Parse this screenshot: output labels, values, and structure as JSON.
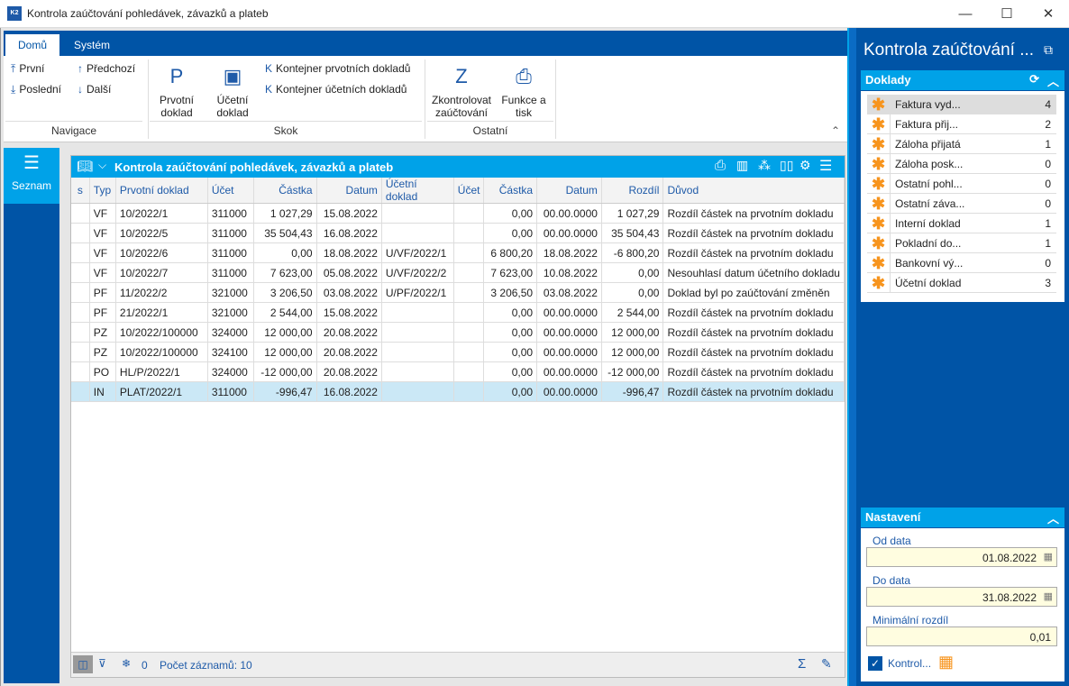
{
  "window": {
    "title": "Kontrola zaúčtování pohledávek, závazků a plateb",
    "logo": "K2",
    "minimize": "—",
    "maximize": "☐",
    "close": "✕"
  },
  "ribbon": {
    "tabs": [
      "Domů",
      "Systém"
    ],
    "nav": {
      "first": "První",
      "last": "Poslední",
      "prev": "Předchozí",
      "next": "Další",
      "group": "Navigace"
    },
    "skok": {
      "prvotni": "Prvotní doklad",
      "ucetni": "Účetní doklad",
      "kont_prv": "Kontejner prvotních dokladů",
      "kont_uc": "Kontejner účetních dokladů",
      "group": "Skok"
    },
    "ostatni": {
      "zkontrolovat": "Zkontrolovat zaúčtování",
      "funkce": "Funkce a tisk",
      "group": "Ostatní"
    }
  },
  "leftnav": {
    "seznam": "Seznam"
  },
  "grid": {
    "title": "Kontrola zaúčtování pohledávek, závazků a plateb",
    "columns": [
      "s",
      "Typ",
      "Prvotní doklad",
      "Účet",
      "Částka",
      "Datum",
      "Účetní doklad",
      "Účet",
      "Částka",
      "Datum",
      "Rozdíl",
      "Důvod"
    ],
    "rows": [
      [
        "",
        "VF",
        "10/2022/1",
        "311000",
        "1 027,29",
        "15.08.2022",
        "",
        "",
        "0,00",
        "00.00.0000",
        "1 027,29",
        "Rozdíl částek na prvotním dokladu"
      ],
      [
        "",
        "VF",
        "10/2022/5",
        "311000",
        "35 504,43",
        "16.08.2022",
        "",
        "",
        "0,00",
        "00.00.0000",
        "35 504,43",
        "Rozdíl částek na prvotním dokladu"
      ],
      [
        "",
        "VF",
        "10/2022/6",
        "311000",
        "0,00",
        "18.08.2022",
        "U/VF/2022/1",
        "",
        "6 800,20",
        "18.08.2022",
        "-6 800,20",
        "Rozdíl částek na prvotním dokladu"
      ],
      [
        "",
        "VF",
        "10/2022/7",
        "311000",
        "7 623,00",
        "05.08.2022",
        "U/VF/2022/2",
        "",
        "7 623,00",
        "10.08.2022",
        "0,00",
        "Nesouhlasí datum účetního dokladu"
      ],
      [
        "",
        "PF",
        "11/2022/2",
        "321000",
        "3 206,50",
        "03.08.2022",
        "U/PF/2022/1",
        "",
        "3 206,50",
        "03.08.2022",
        "0,00",
        "Doklad byl po zaúčtování změněn"
      ],
      [
        "",
        "PF",
        "21/2022/1",
        "321000",
        "2 544,00",
        "15.08.2022",
        "",
        "",
        "0,00",
        "00.00.0000",
        "2 544,00",
        "Rozdíl částek na prvotním dokladu"
      ],
      [
        "",
        "PZ",
        "10/2022/100000",
        "324000",
        "12 000,00",
        "20.08.2022",
        "",
        "",
        "0,00",
        "00.00.0000",
        "12 000,00",
        "Rozdíl částek na prvotním dokladu"
      ],
      [
        "",
        "PZ",
        "10/2022/100000",
        "324100",
        "12 000,00",
        "20.08.2022",
        "",
        "",
        "0,00",
        "00.00.0000",
        "12 000,00",
        "Rozdíl částek na prvotním dokladu"
      ],
      [
        "",
        "PO",
        "HL/P/2022/1",
        "324000",
        "-12 000,00",
        "20.08.2022",
        "",
        "",
        "0,00",
        "00.00.0000",
        "-12 000,00",
        "Rozdíl částek na prvotním dokladu"
      ],
      [
        "",
        "IN",
        "PLAT/2022/1",
        "311000",
        "-996,47",
        "16.08.2022",
        "",
        "",
        "0,00",
        "00.00.0000",
        "-996,47",
        "Rozdíl částek na prvotním dokladu"
      ]
    ],
    "selected_row": 9,
    "footer": {
      "filter_count": "0",
      "records": "Počet záznamů: 10"
    }
  },
  "right": {
    "title": "Kontrola zaúčtování ...",
    "doklady": {
      "header": "Doklady",
      "items": [
        {
          "label": "Faktura vyd...",
          "count": "4"
        },
        {
          "label": "Faktura přij...",
          "count": "2"
        },
        {
          "label": "Záloha přijatá",
          "count": "1"
        },
        {
          "label": "Záloha posk...",
          "count": "0"
        },
        {
          "label": "Ostatní pohl...",
          "count": "0"
        },
        {
          "label": "Ostatní záva...",
          "count": "0"
        },
        {
          "label": "Interní doklad",
          "count": "1"
        },
        {
          "label": "Pokladní do...",
          "count": "1"
        },
        {
          "label": "Bankovní vý...",
          "count": "0"
        },
        {
          "label": "Účetní doklad",
          "count": "3"
        }
      ]
    },
    "nastaveni": {
      "header": "Nastavení",
      "od_label": "Od data",
      "od": "01.08.2022",
      "do_label": "Do data",
      "do": "31.08.2022",
      "min_label": "Minimální rozdíl",
      "min": "0,01",
      "check_label": "Kontrol...",
      "checked": true
    }
  },
  "colors": {
    "brand": "#0054a6",
    "accent": "#00a2e8",
    "asterisk": "#f7941d",
    "selected": "#cbe8f6"
  }
}
